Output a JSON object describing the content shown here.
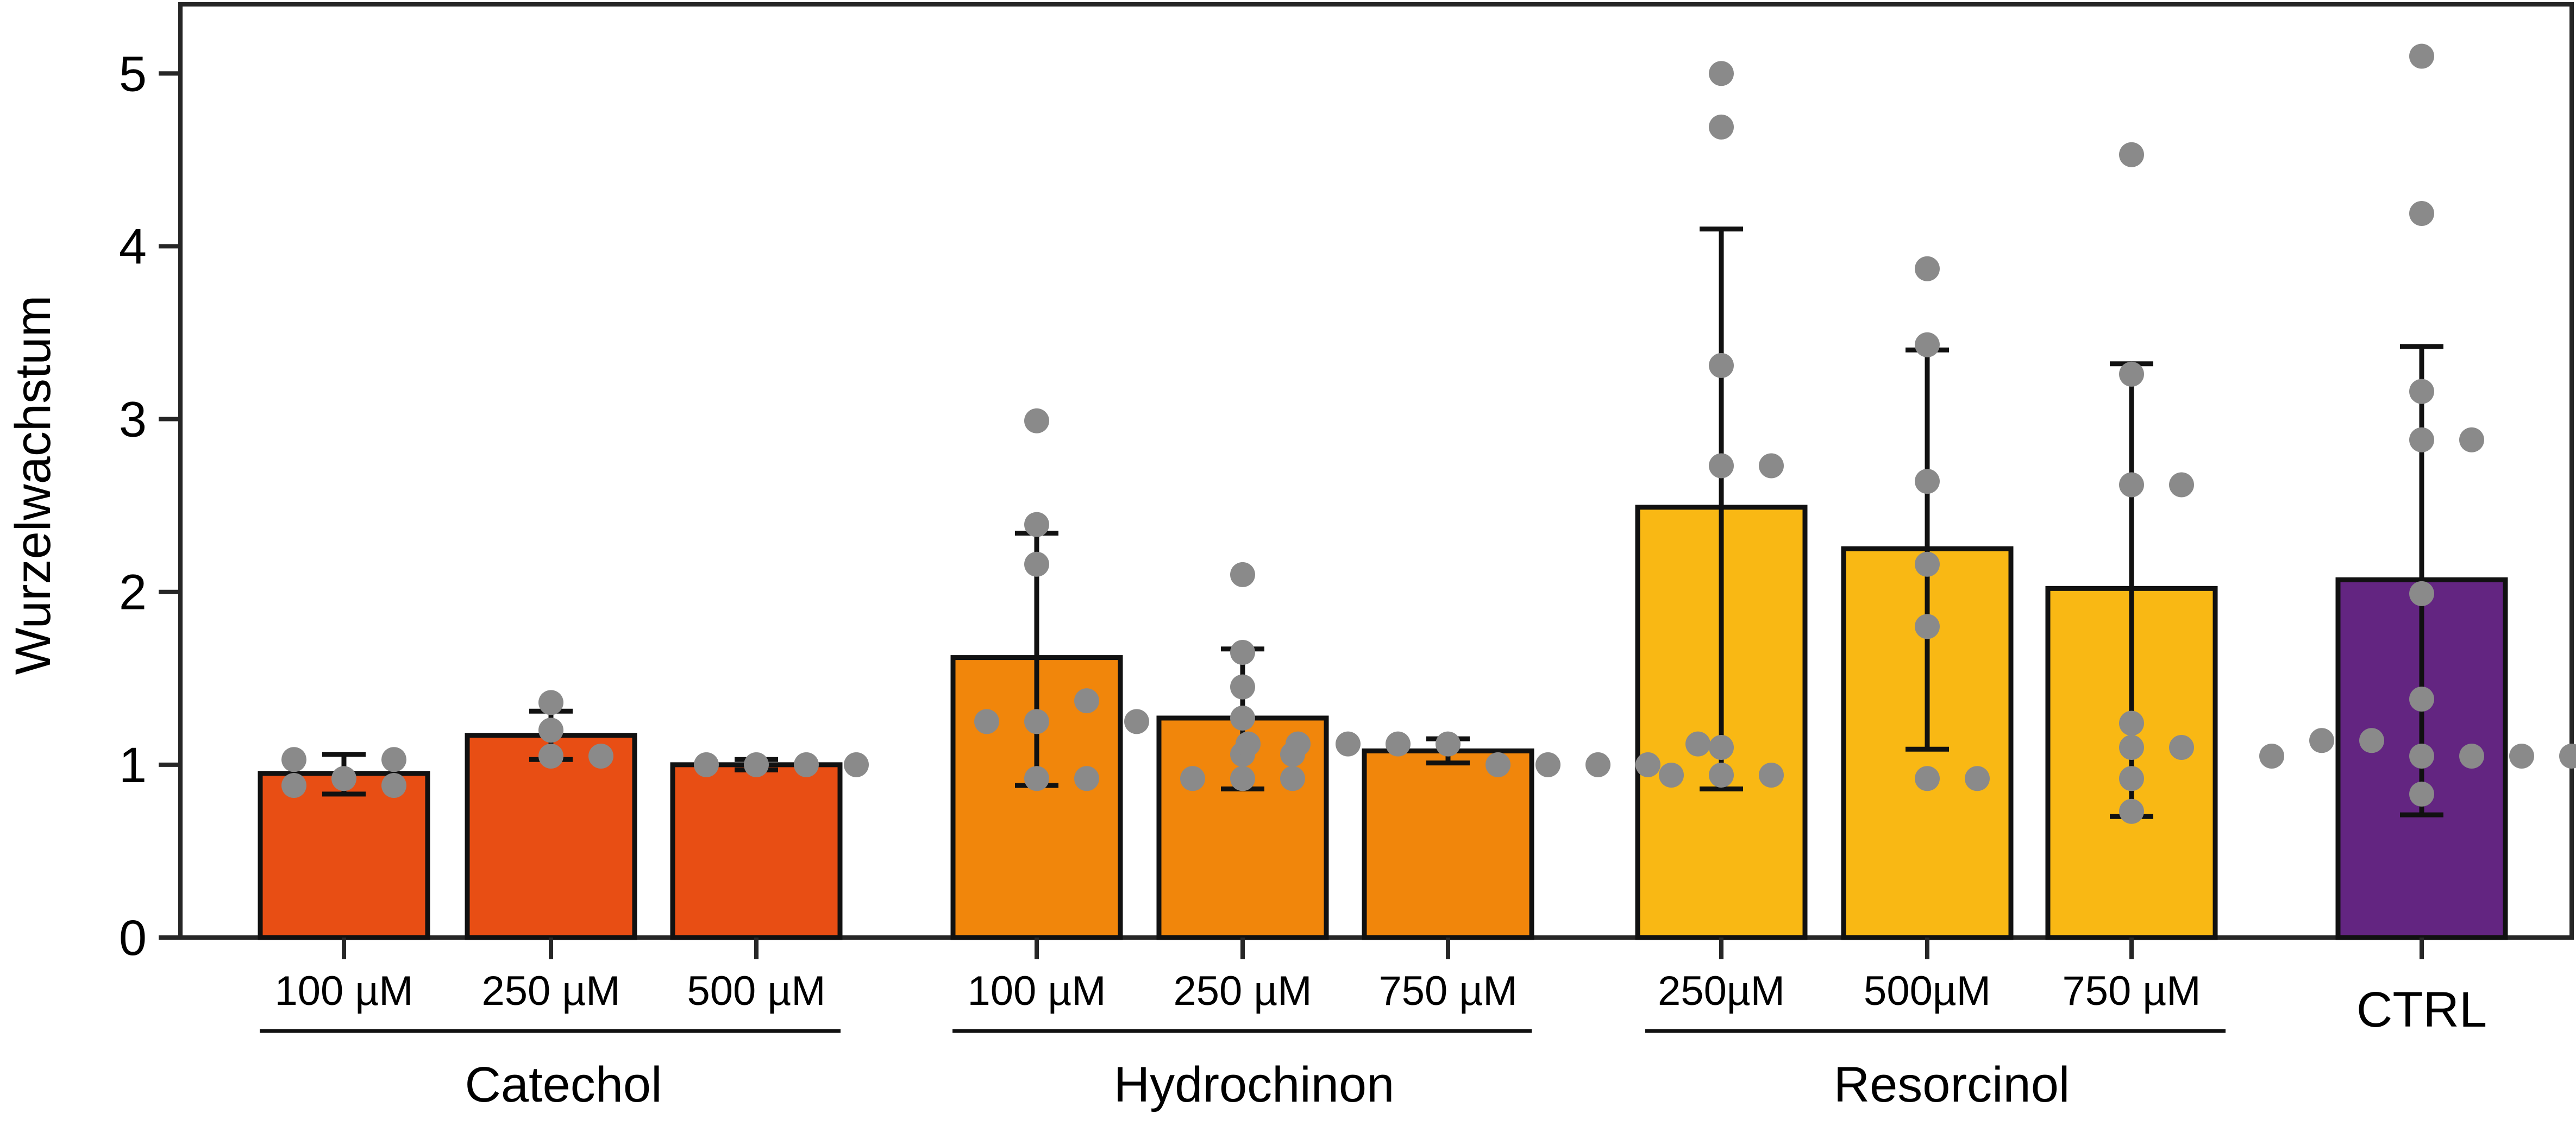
{
  "chart_data": {
    "type": "bar",
    "title": "",
    "ylabel": "Wurzelwachstum",
    "xlabel": "",
    "ylim": [
      0,
      5.4
    ],
    "yticks": [
      0,
      1,
      2,
      3,
      4,
      5
    ],
    "grid": false,
    "legend": "none",
    "groups": [
      {
        "name": "Catechol",
        "color": "#E84E14",
        "bars": [
          {
            "label": "100 µM",
            "mean": 0.95,
            "err_low": 0.83,
            "err_high": 1.06,
            "points": [
              0.92,
              1.03,
              0.88,
              1.03,
              0.88
            ]
          },
          {
            "label": "250 µM",
            "mean": 1.17,
            "err_low": 1.03,
            "err_high": 1.31,
            "points": [
              1.05,
              1.36,
              1.2,
              1.05
            ]
          },
          {
            "label": "500 µM",
            "mean": 1.0,
            "err_low": 0.97,
            "err_high": 1.03,
            "points": [
              1.0,
              1.0,
              1.0,
              1.0
            ]
          }
        ]
      },
      {
        "name": "Hydrochinon",
        "color": "#F1860B",
        "bars": [
          {
            "label": "100 µM",
            "mean": 1.62,
            "err_low": 0.88,
            "err_high": 2.34,
            "points": [
              1.25,
              0.92,
              2.99,
              2.39,
              2.16,
              1.37,
              1.25,
              0.92,
              1.25
            ]
          },
          {
            "label": "250 µM",
            "mean": 1.27,
            "err_low": 0.86,
            "err_high": 1.67,
            "points": [
              0.92,
              1.06,
              2.1,
              1.65,
              1.45,
              1.27,
              0.92,
              1.06,
              0.92
            ]
          },
          {
            "label": "750 µM",
            "mean": 1.08,
            "err_low": 1.01,
            "err_high": 1.15,
            "points": [
              1.12,
              1.0,
              1.12,
              1.0,
              1.12,
              1.0,
              1.12,
              1.0,
              1.12,
              1.12
            ]
          }
        ]
      },
      {
        "name": "Resorcinol",
        "color": "#F9B814",
        "bars": [
          {
            "label": "250µM",
            "mean": 2.49,
            "err_low": 0.86,
            "err_high": 4.1,
            "points": [
              0.94,
              2.73,
              5.0,
              4.69,
              3.31,
              1.1,
              0.94,
              2.73,
              0.94
            ]
          },
          {
            "label": "500µM",
            "mean": 2.25,
            "err_low": 1.09,
            "err_high": 3.4,
            "points": [
              0.92,
              1.8,
              3.87,
              3.43,
              2.64,
              2.16,
              0.92
            ]
          },
          {
            "label": "750 µM",
            "mean": 2.02,
            "err_low": 0.7,
            "err_high": 3.32,
            "points": [
              1.1,
              2.62,
              4.53,
              3.26,
              1.24,
              0.92,
              0.73,
              2.62,
              1.1
            ]
          }
        ]
      },
      {
        "name": "",
        "color": "#632581",
        "bars": [
          {
            "label": "CTRL",
            "mean": 2.07,
            "err_low": 0.71,
            "err_high": 3.42,
            "points": [
              1.05,
              1.05,
              2.88,
              1.14,
              5.1,
              4.19,
              3.16,
              1.99,
              1.38,
              0.83,
              1.05,
              2.88,
              1.14,
              1.05,
              1.05
            ]
          }
        ]
      }
    ]
  }
}
